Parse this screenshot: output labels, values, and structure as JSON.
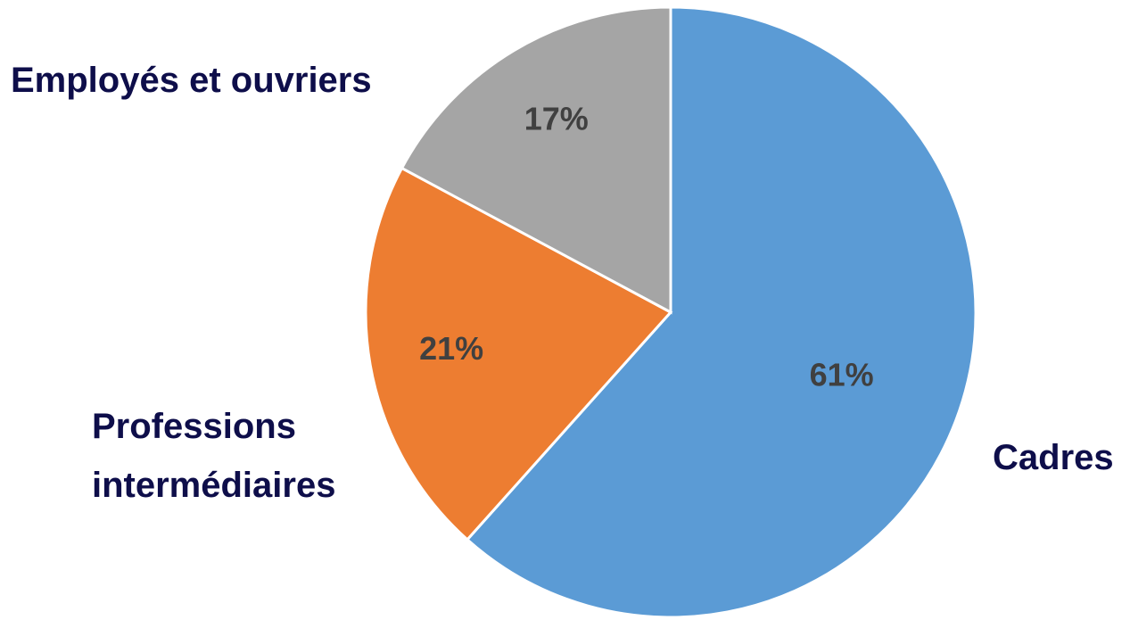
{
  "chart_data": {
    "type": "pie",
    "categories": [
      "Cadres",
      "Professions intermédiaires",
      "Employés et ouvriers"
    ],
    "values": [
      61,
      21,
      17
    ],
    "value_labels": [
      "61%",
      "21%",
      "17%"
    ],
    "colors": [
      "#5b9bd5",
      "#ed7d31",
      "#a5a5a5"
    ]
  }
}
